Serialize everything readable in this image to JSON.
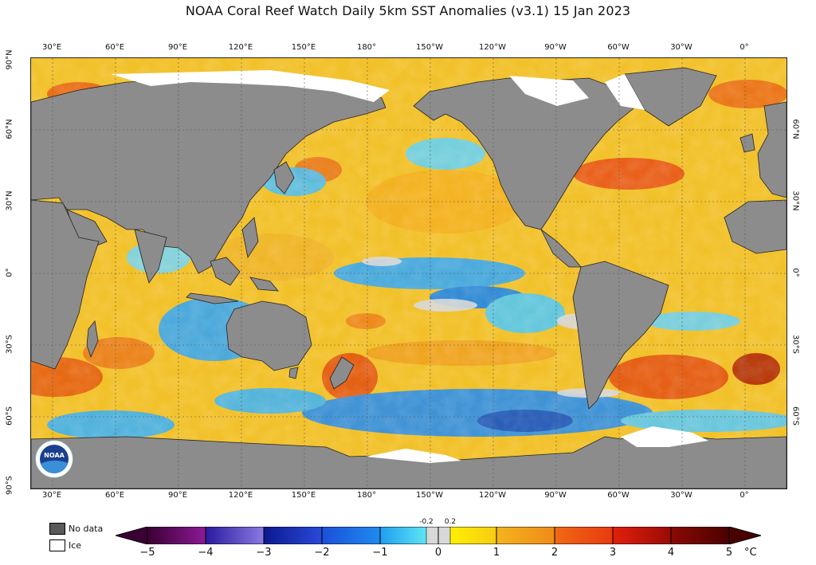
{
  "title": "NOAA Coral Reef Watch Daily 5km SST Anomalies  (v3.1)   15 Jan 2023",
  "lon_labels": [
    "30°E",
    "60°E",
    "90°E",
    "120°E",
    "150°E",
    "180°",
    "150°W",
    "120°W",
    "90°W",
    "60°W",
    "30°W",
    "0°"
  ],
  "lat_labels_left": [
    "90°N",
    "60°N",
    "30°N",
    "0°",
    "30°S",
    "60°S",
    "90°S"
  ],
  "lat_labels_right": [
    "60°N",
    "30°N",
    "0°",
    "30°S",
    "60°S"
  ],
  "map_colors": {
    "land": "#8c8c8c",
    "ice": "#ffffff",
    "ocean_base": "#f2c12a",
    "grid": "#555555"
  },
  "logo": {
    "text": "NOAA"
  },
  "legend": [
    {
      "label": "No data",
      "color": "#5a5a5a"
    },
    {
      "label": "Ice",
      "color": "#ffffff"
    }
  ],
  "colorbar": {
    "unit": "°C",
    "labels": [
      "−5",
      "−4",
      "−3",
      "−2",
      "−1",
      "0",
      "1",
      "2",
      "3",
      "4",
      "5"
    ],
    "annotations": [
      "-0.2",
      "0.2"
    ],
    "colors": {
      "minus5": "#3b0033",
      "minus4": "#8b1a96",
      "minus3": "#2a2aa0",
      "minus2": "#1b5fe0",
      "minus1": "#1f9df0",
      "minus0": "#49e0f0",
      "zero": "#d8d8d8",
      "plus1": "#ffe400",
      "plus2": "#f4b41c",
      "plus3": "#ef6a14",
      "plus4": "#e2200d",
      "plus5": "#5a0000"
    }
  }
}
